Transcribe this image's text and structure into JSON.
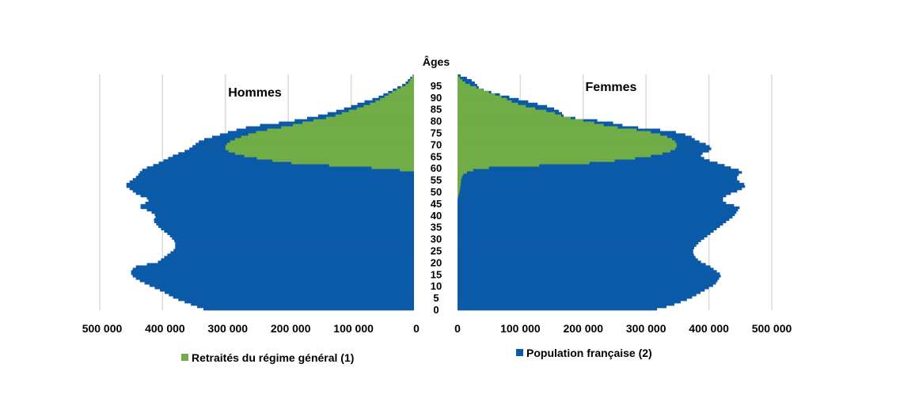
{
  "chart_data": {
    "type": "bar",
    "orientation": "horizontal",
    "layout": "population-pyramid",
    "yaxis_label": "Âges",
    "age_ticks": [
      "0",
      "5",
      "10",
      "15",
      "20",
      "25",
      "30",
      "35",
      "40",
      "45",
      "50",
      "55",
      "60",
      "65",
      "70",
      "75",
      "80",
      "85",
      "90",
      "95"
    ],
    "x_ticks_left": [
      "500 000",
      "400 000",
      "300 000",
      "200 000",
      "100 000",
      "0"
    ],
    "x_ticks_right": [
      "0",
      "100 000",
      "200 000",
      "300 000",
      "400 000",
      "500 000"
    ],
    "xlim": [
      0,
      500000
    ],
    "ylim": [
      0,
      100
    ],
    "grid": true,
    "legend_position": "bottom",
    "panels": [
      {
        "side": "left",
        "title": "Hommes"
      },
      {
        "side": "right",
        "title": "Femmes"
      }
    ],
    "series": [
      {
        "name": "Retraités du régime général (1)",
        "color": "#70ad47"
      },
      {
        "name": "Population française (2)",
        "color": "#0b5aa8"
      }
    ],
    "population_men": {
      "ages": [
        0,
        2,
        5,
        8,
        11,
        13,
        15,
        17,
        19,
        20,
        22,
        24,
        26,
        29,
        32,
        35,
        38,
        40,
        42,
        44,
        45,
        47,
        49,
        51,
        53,
        55,
        57,
        59,
        60,
        62,
        64,
        66,
        68,
        70,
        72,
        74,
        76,
        78,
        80,
        82,
        84,
        86,
        88,
        90,
        92,
        94,
        96,
        98,
        100
      ],
      "values": [
        330000,
        350000,
        380000,
        400000,
        425000,
        440000,
        450000,
        450000,
        440000,
        410000,
        400000,
        390000,
        380000,
        380000,
        390000,
        405000,
        415000,
        410000,
        420000,
        440000,
        430000,
        420000,
        440000,
        450000,
        460000,
        450000,
        440000,
        435000,
        430000,
        410000,
        395000,
        380000,
        360000,
        350000,
        340000,
        315000,
        290000,
        260000,
        200000,
        160000,
        130000,
        105000,
        85000,
        60000,
        45000,
        30000,
        15000,
        8000,
        0
      ]
    },
    "retirees_men": {
      "ages": [
        0,
        59,
        60,
        61,
        62,
        64,
        66,
        68,
        70,
        72,
        74,
        76,
        78,
        80,
        82,
        84,
        86,
        88,
        90,
        92,
        94,
        96,
        98,
        100
      ],
      "values": [
        0,
        0,
        45000,
        90000,
        180000,
        240000,
        280000,
        300000,
        300000,
        290000,
        270000,
        245000,
        200000,
        170000,
        130000,
        110000,
        85000,
        65000,
        50000,
        38000,
        25000,
        10000,
        5000,
        0
      ]
    },
    "population_women": {
      "ages": [
        0,
        2,
        5,
        8,
        11,
        13,
        15,
        17,
        19,
        20,
        22,
        24,
        26,
        29,
        32,
        35,
        38,
        40,
        42,
        44,
        45,
        47,
        49,
        51,
        53,
        55,
        57,
        59,
        60,
        62,
        64,
        66,
        68,
        70,
        72,
        74,
        76,
        78,
        80,
        82,
        84,
        86,
        88,
        90,
        92,
        94,
        96,
        98,
        100
      ],
      "values": [
        310000,
        340000,
        370000,
        390000,
        410000,
        415000,
        420000,
        410000,
        400000,
        390000,
        380000,
        375000,
        375000,
        385000,
        400000,
        415000,
        430000,
        440000,
        445000,
        450000,
        430000,
        420000,
        430000,
        450000,
        460000,
        445000,
        445000,
        455000,
        440000,
        420000,
        395000,
        385000,
        405000,
        400000,
        380000,
        370000,
        340000,
        270000,
        240000,
        170000,
        165000,
        150000,
        120000,
        90000,
        60000,
        35000,
        30000,
        20000,
        0
      ]
    },
    "retirees_women": {
      "ages": [
        0,
        47,
        50,
        53,
        56,
        58,
        60,
        61,
        62,
        64,
        66,
        68,
        70,
        72,
        74,
        76,
        78,
        80,
        82,
        84,
        86,
        88,
        90,
        92,
        94,
        96,
        98,
        100
      ],
      "values": [
        0,
        0,
        3000,
        5000,
        6000,
        10000,
        30000,
        70000,
        190000,
        270000,
        320000,
        345000,
        350000,
        345000,
        330000,
        300000,
        240000,
        210000,
        170000,
        150000,
        115000,
        90000,
        75000,
        55000,
        35000,
        15000,
        5000,
        0
      ]
    }
  }
}
